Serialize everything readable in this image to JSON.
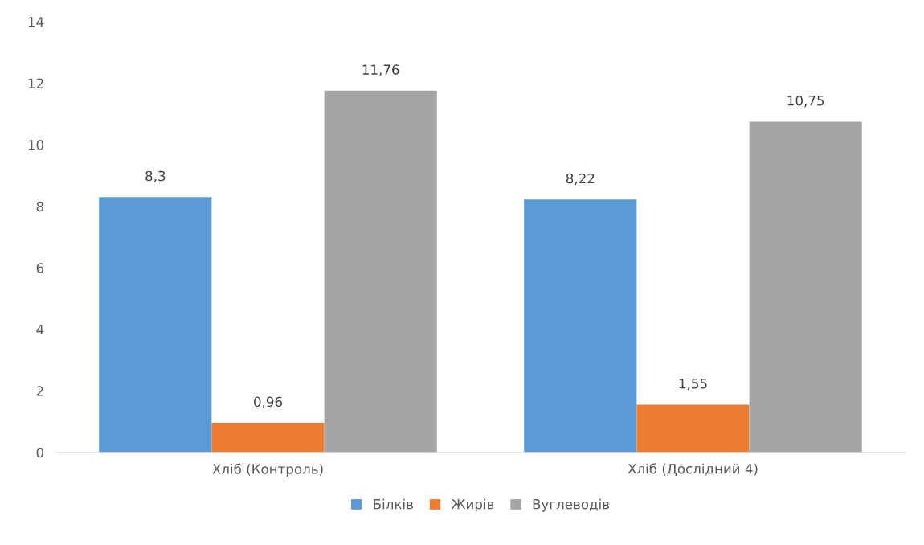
{
  "chart_data": {
    "type": "bar",
    "categories": [
      "Хліб (Контроль)",
      "Хліб (Дослідний 4)"
    ],
    "series": [
      {
        "name": "Білків",
        "color": "#5b9bd5",
        "values": [
          8.3,
          8.22
        ],
        "value_labels": [
          "8,3",
          "8,22"
        ]
      },
      {
        "name": "Жирів",
        "color": "#ed7d31",
        "values": [
          0.96,
          1.55
        ],
        "value_labels": [
          "0,96",
          "1,55"
        ]
      },
      {
        "name": "Вуглеводів",
        "color": "#a5a5a5",
        "values": [
          11.76,
          10.75
        ],
        "value_labels": [
          "11,76",
          "10,75"
        ]
      }
    ],
    "ylim": [
      0,
      14
    ],
    "yticks": [
      0,
      2,
      4,
      6,
      8,
      10,
      12,
      14
    ],
    "grid": false,
    "legend": "bottom"
  }
}
